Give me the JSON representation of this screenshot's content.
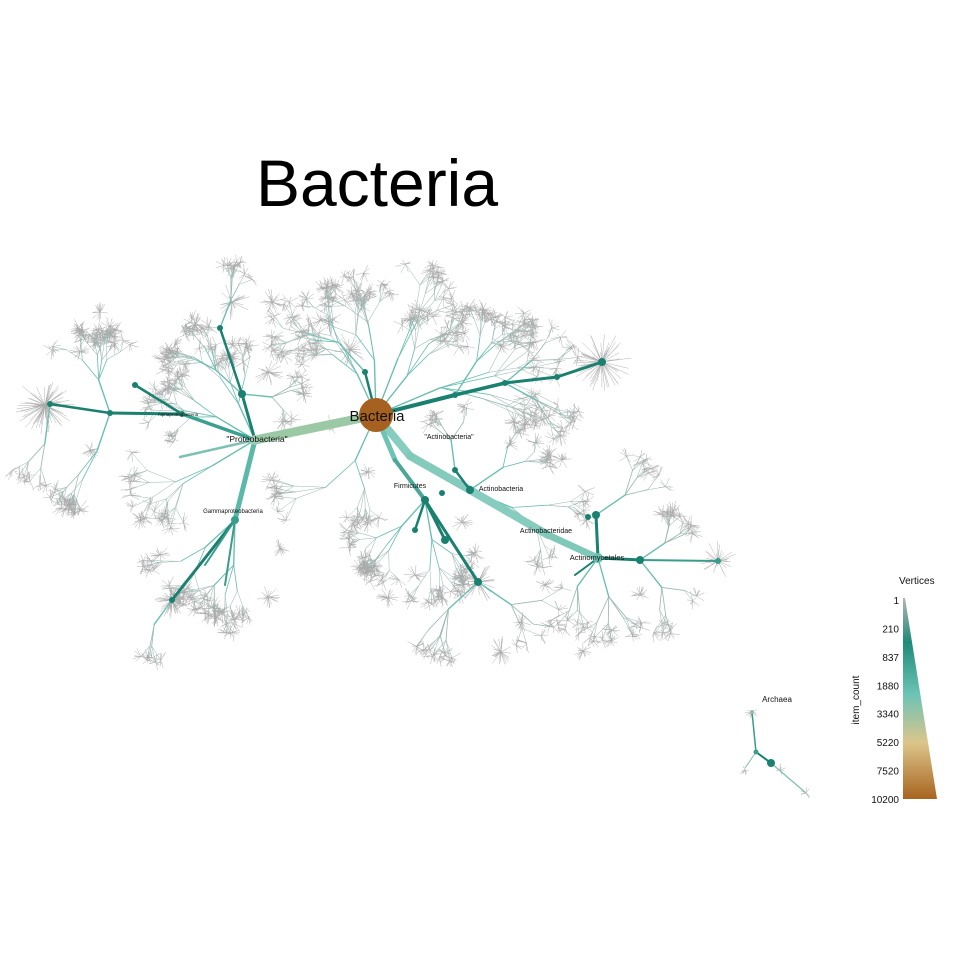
{
  "title": "Bacteria",
  "labels": {
    "root": "Bacteria",
    "proteobacteria": "\"Proteobacteria\"",
    "actinobacteria_phylum": "\"Actinobacteria\"",
    "firmicutes": "Firmicutes",
    "actinobacteria_class": "Actinobacteria",
    "actinobacteridae": "Actinobacteridae",
    "actinomycetales": "Actinomycetales",
    "gammaproteobacteria": "Gammaproteobacteria",
    "alphaproteobacteria": "Alphaproteobacteria",
    "archaea": "Archaea"
  },
  "legend": {
    "title": "Vertices",
    "axis_label": "item_count",
    "ticks": [
      "1",
      "210",
      "837",
      "1880",
      "3340",
      "5220",
      "7520",
      "10200"
    ],
    "gradient": [
      "#b0b0b0",
      "#1f8a78",
      "#6cc4b6",
      "#dcc58a",
      "#a86420"
    ]
  },
  "colors": {
    "leaf": "#a9a9a9",
    "mid": "#6bbfb1",
    "dark": "#1a8070",
    "root": "#a6601f",
    "proteo_edge": "#9cc9a5"
  }
}
